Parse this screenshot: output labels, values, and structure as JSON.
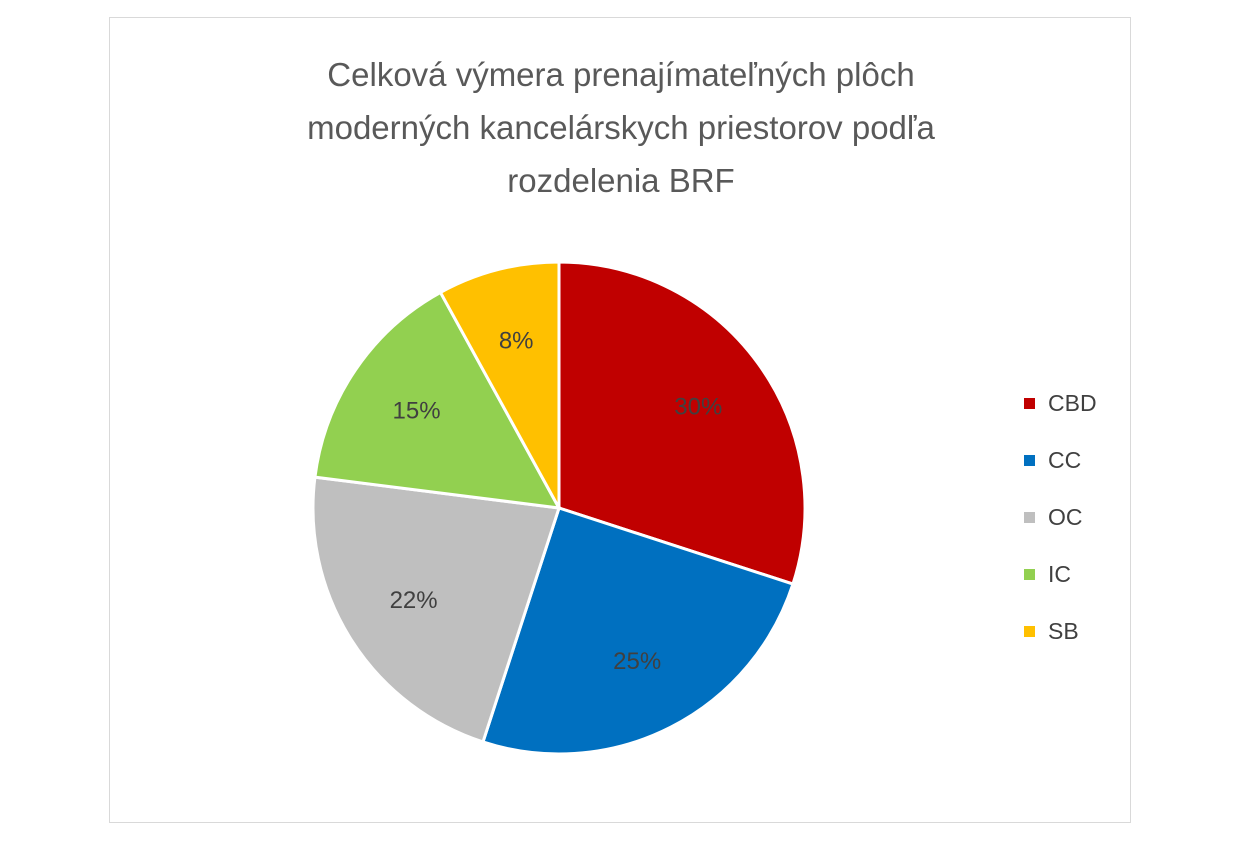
{
  "chart_data": {
    "type": "pie",
    "title_lines": [
      "Celková výmera prenajímateľných plôch",
      "moderných kancelárskych priestorov podľa",
      "rozdelenia BRF"
    ],
    "categories": [
      "CBD",
      "CC",
      "OC",
      "IC",
      "SB"
    ],
    "values": [
      30,
      25,
      22,
      15,
      8
    ],
    "data_labels": [
      "30%",
      "25%",
      "22%",
      "15%",
      "8%"
    ],
    "colors": [
      "#c00000",
      "#0070c0",
      "#bfbfbf",
      "#92d050",
      "#ffc000"
    ],
    "label_colors": [
      "#404040",
      "#404040",
      "#404040",
      "#404040",
      "#404040"
    ],
    "legend_position": "right",
    "start_angle_deg": 0,
    "direction": "clockwise"
  }
}
